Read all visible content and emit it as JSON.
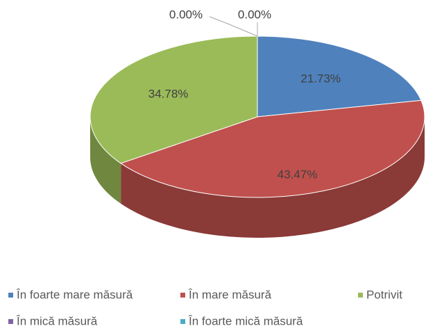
{
  "chart_data": {
    "type": "pie",
    "categories": [
      "În foarte mare măsură",
      "În mare măsură",
      "Potrivit",
      "În mică măsură",
      "În foarte mică măsură"
    ],
    "values": [
      21.73,
      43.47,
      34.78,
      0.0,
      0.0
    ],
    "value_labels": [
      "21.73%",
      "43.47%",
      "34.78%",
      "0.00%",
      "0.00%"
    ],
    "colors": [
      "#4f81bd",
      "#c0504d",
      "#9bbb59",
      "#8064a2",
      "#4bacc6"
    ],
    "legend": "bottom"
  }
}
